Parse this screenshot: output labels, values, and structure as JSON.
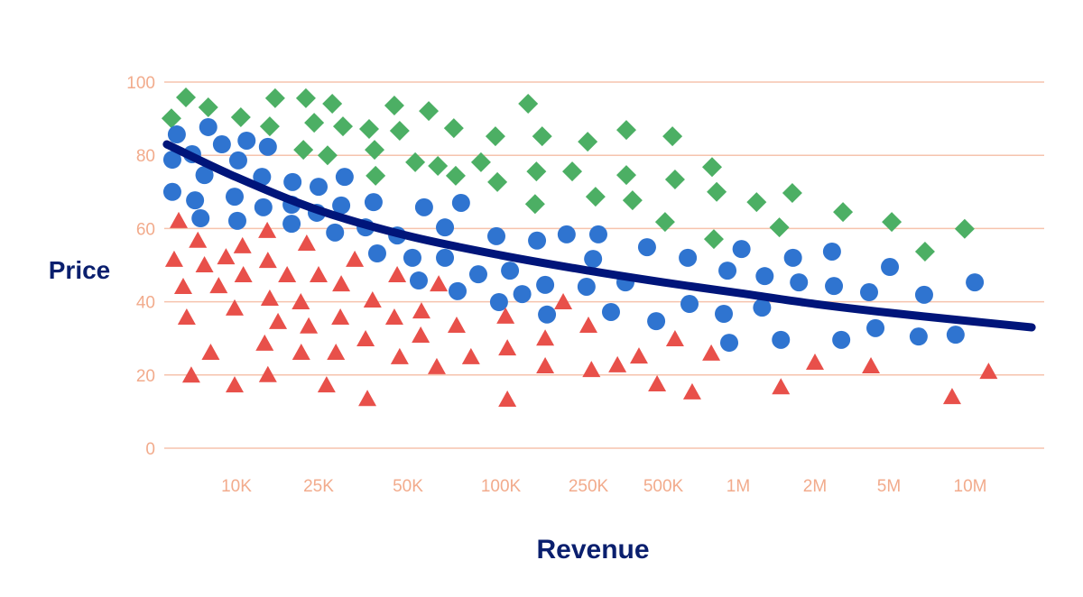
{
  "chart_data": {
    "type": "scatter",
    "title": "",
    "xlabel": "Revenue",
    "ylabel": "Price",
    "x_scale": "log",
    "ylim": [
      0,
      100
    ],
    "grid": "horizontal",
    "legend": "none",
    "y_ticks": [
      0,
      20,
      40,
      60,
      80,
      100
    ],
    "x_ticks": [
      {
        "value": 10000,
        "label": "10K"
      },
      {
        "value": 25000,
        "label": "25K"
      },
      {
        "value": 50000,
        "label": "50K"
      },
      {
        "value": 100000,
        "label": "100K"
      },
      {
        "value": 250000,
        "label": "250K"
      },
      {
        "value": 500000,
        "label": "500K"
      },
      {
        "value": 1000000,
        "label": "1M"
      },
      {
        "value": 2000000,
        "label": "2M"
      },
      {
        "value": 5000000,
        "label": "5M"
      },
      {
        "value": 10000000,
        "label": "10M"
      }
    ],
    "colors": {
      "grid": "#f6c3ad",
      "ticks": "#f2ab8c",
      "axis_titles": "#0a1f6e",
      "curve": "#00157a"
    },
    "series": [
      {
        "marker": "diamond",
        "color": "#4caf64",
        "points": [
          [
            4840,
            90.1
          ],
          [
            5690,
            95.8
          ],
          [
            7300,
            93.1
          ],
          [
            10500,
            90.4
          ],
          [
            14500,
            87.9
          ],
          [
            15400,
            95.6
          ],
          [
            21100,
            81.5
          ],
          [
            21700,
            95.6
          ],
          [
            23800,
            88.9
          ],
          [
            27800,
            94.1
          ],
          [
            26800,
            80.0
          ],
          [
            30200,
            87.9
          ],
          [
            37000,
            87.2
          ],
          [
            38600,
            81.5
          ],
          [
            38900,
            74.4
          ],
          [
            45000,
            93.6
          ],
          [
            46900,
            86.7
          ],
          [
            52800,
            78.1
          ],
          [
            58400,
            92.1
          ],
          [
            62500,
            77.1
          ],
          [
            70400,
            87.4
          ],
          [
            71400,
            74.4
          ],
          [
            86200,
            78.1
          ],
          [
            96000,
            85.2
          ],
          [
            97400,
            72.7
          ],
          [
            133000,
            94.1
          ],
          [
            145000,
            75.6
          ],
          [
            154000,
            85.2
          ],
          [
            143000,
            66.7
          ],
          [
            211000,
            75.6
          ],
          [
            248000,
            83.7
          ],
          [
            267000,
            68.7
          ],
          [
            355000,
            86.9
          ],
          [
            355000,
            74.6
          ],
          [
            376000,
            67.7
          ],
          [
            508000,
            61.8
          ],
          [
            544000,
            85.2
          ],
          [
            557000,
            73.4
          ],
          [
            785000,
            76.8
          ],
          [
            819000,
            70.0
          ],
          [
            798000,
            57.1
          ],
          [
            1180000,
            67.2
          ],
          [
            1450000,
            60.3
          ],
          [
            1630000,
            69.7
          ],
          [
            2830000,
            64.5
          ],
          [
            5120000,
            61.8
          ],
          [
            6800000,
            53.7
          ],
          [
            9540000,
            59.9
          ]
        ]
      },
      {
        "marker": "circle",
        "color": "#2f74d0",
        "points": [
          [
            4890,
            78.8
          ],
          [
            4890,
            70.0
          ],
          [
            5140,
            85.7
          ],
          [
            6100,
            80.3
          ],
          [
            6300,
            67.7
          ],
          [
            6700,
            62.8
          ],
          [
            7000,
            74.6
          ],
          [
            7300,
            87.7
          ],
          [
            8500,
            83.0
          ],
          [
            10100,
            62.1
          ],
          [
            10200,
            78.6
          ],
          [
            9800,
            68.7
          ],
          [
            11200,
            84.0
          ],
          [
            13300,
            74.1
          ],
          [
            14200,
            82.3
          ],
          [
            13500,
            65.8
          ],
          [
            18700,
            72.7
          ],
          [
            18500,
            66.5
          ],
          [
            18500,
            61.3
          ],
          [
            25000,
            71.4
          ],
          [
            24500,
            64.3
          ],
          [
            28400,
            58.9
          ],
          [
            29800,
            66.3
          ],
          [
            30600,
            74.1
          ],
          [
            36000,
            60.3
          ],
          [
            38300,
            67.2
          ],
          [
            39400,
            53.2
          ],
          [
            46000,
            58.1
          ],
          [
            51700,
            52.0
          ],
          [
            54200,
            45.8
          ],
          [
            56400,
            65.8
          ],
          [
            65900,
            60.3
          ],
          [
            65900,
            52.0
          ],
          [
            72400,
            42.9
          ],
          [
            74300,
            67.0
          ],
          [
            84500,
            47.5
          ],
          [
            96700,
            57.9
          ],
          [
            98600,
            39.9
          ],
          [
            110000,
            48.5
          ],
          [
            125000,
            42.1
          ],
          [
            146000,
            56.7
          ],
          [
            159000,
            44.6
          ],
          [
            162000,
            36.5
          ],
          [
            199000,
            58.4
          ],
          [
            245000,
            44.1
          ],
          [
            261000,
            51.7
          ],
          [
            274000,
            58.4
          ],
          [
            308000,
            37.2
          ],
          [
            352000,
            45.3
          ],
          [
            430000,
            54.9
          ],
          [
            468000,
            34.7
          ],
          [
            627000,
            52.0
          ],
          [
            637000,
            39.4
          ],
          [
            875000,
            36.7
          ],
          [
            905000,
            48.5
          ],
          [
            920000,
            28.8
          ],
          [
            1030000,
            54.4
          ],
          [
            1240000,
            38.4
          ],
          [
            1270000,
            47.0
          ],
          [
            1470000,
            29.6
          ],
          [
            1640000,
            52.0
          ],
          [
            1730000,
            45.3
          ],
          [
            2470000,
            53.7
          ],
          [
            2530000,
            44.3
          ],
          [
            2770000,
            29.6
          ],
          [
            3910000,
            42.6
          ],
          [
            4230000,
            32.8
          ],
          [
            5040000,
            49.5
          ],
          [
            6440000,
            30.5
          ],
          [
            6750000,
            41.9
          ],
          [
            8830000,
            31.0
          ],
          [
            10400000,
            45.3
          ]
        ]
      },
      {
        "marker": "triangle",
        "color": "#e8504a",
        "points": [
          [
            4990,
            51.5
          ],
          [
            5250,
            62.1
          ],
          [
            5520,
            44.1
          ],
          [
            5740,
            35.7
          ],
          [
            6040,
            19.9
          ],
          [
            6500,
            56.7
          ],
          [
            7000,
            50.0
          ],
          [
            7500,
            26.1
          ],
          [
            8200,
            44.3
          ],
          [
            8900,
            52.2
          ],
          [
            9800,
            17.2
          ],
          [
            9800,
            38.2
          ],
          [
            10700,
            55.2
          ],
          [
            10800,
            47.3
          ],
          [
            13700,
            28.6
          ],
          [
            14100,
            59.4
          ],
          [
            14200,
            51.2
          ],
          [
            14200,
            20.0
          ],
          [
            14500,
            40.9
          ],
          [
            15900,
            34.5
          ],
          [
            17600,
            47.3
          ],
          [
            20500,
            39.9
          ],
          [
            20600,
            26.1
          ],
          [
            21900,
            55.9
          ],
          [
            22400,
            33.3
          ],
          [
            25000,
            47.3
          ],
          [
            26600,
            17.2
          ],
          [
            28600,
            26.1
          ],
          [
            29800,
            44.8
          ],
          [
            29600,
            35.7
          ],
          [
            33100,
            51.5
          ],
          [
            36000,
            29.8
          ],
          [
            36500,
            13.5
          ],
          [
            38000,
            40.4
          ],
          [
            45000,
            35.7
          ],
          [
            46000,
            47.3
          ],
          [
            46900,
            24.9
          ],
          [
            55000,
            30.8
          ],
          [
            55300,
            37.4
          ],
          [
            62000,
            22.2
          ],
          [
            62900,
            44.8
          ],
          [
            71900,
            33.5
          ],
          [
            80000,
            24.9
          ],
          [
            105000,
            36.0
          ],
          [
            107000,
            13.3
          ],
          [
            107000,
            27.3
          ],
          [
            159000,
            30.0
          ],
          [
            159000,
            22.4
          ],
          [
            192000,
            39.9
          ],
          [
            250000,
            33.5
          ],
          [
            257000,
            21.4
          ],
          [
            327000,
            22.7
          ],
          [
            399000,
            25.1
          ],
          [
            472000,
            17.5
          ],
          [
            557000,
            29.8
          ],
          [
            653000,
            15.3
          ],
          [
            779000,
            25.9
          ],
          [
            1470000,
            16.7
          ],
          [
            2000000,
            23.4
          ],
          [
            4000000,
            22.4
          ],
          [
            8570000,
            14.0
          ],
          [
            11700000,
            20.9
          ]
        ]
      }
    ],
    "trend_line": {
      "points": [
        [
          4600,
          83
        ],
        [
          10000,
          74
        ],
        [
          25000,
          65
        ],
        [
          50000,
          58
        ],
        [
          100000,
          52.7
        ],
        [
          250000,
          48.5
        ],
        [
          500000,
          45.3
        ],
        [
          1000000,
          42.4
        ],
        [
          2000000,
          39.4
        ],
        [
          5000000,
          37
        ],
        [
          10000000,
          34.7
        ],
        [
          16900000,
          33
        ]
      ]
    }
  }
}
